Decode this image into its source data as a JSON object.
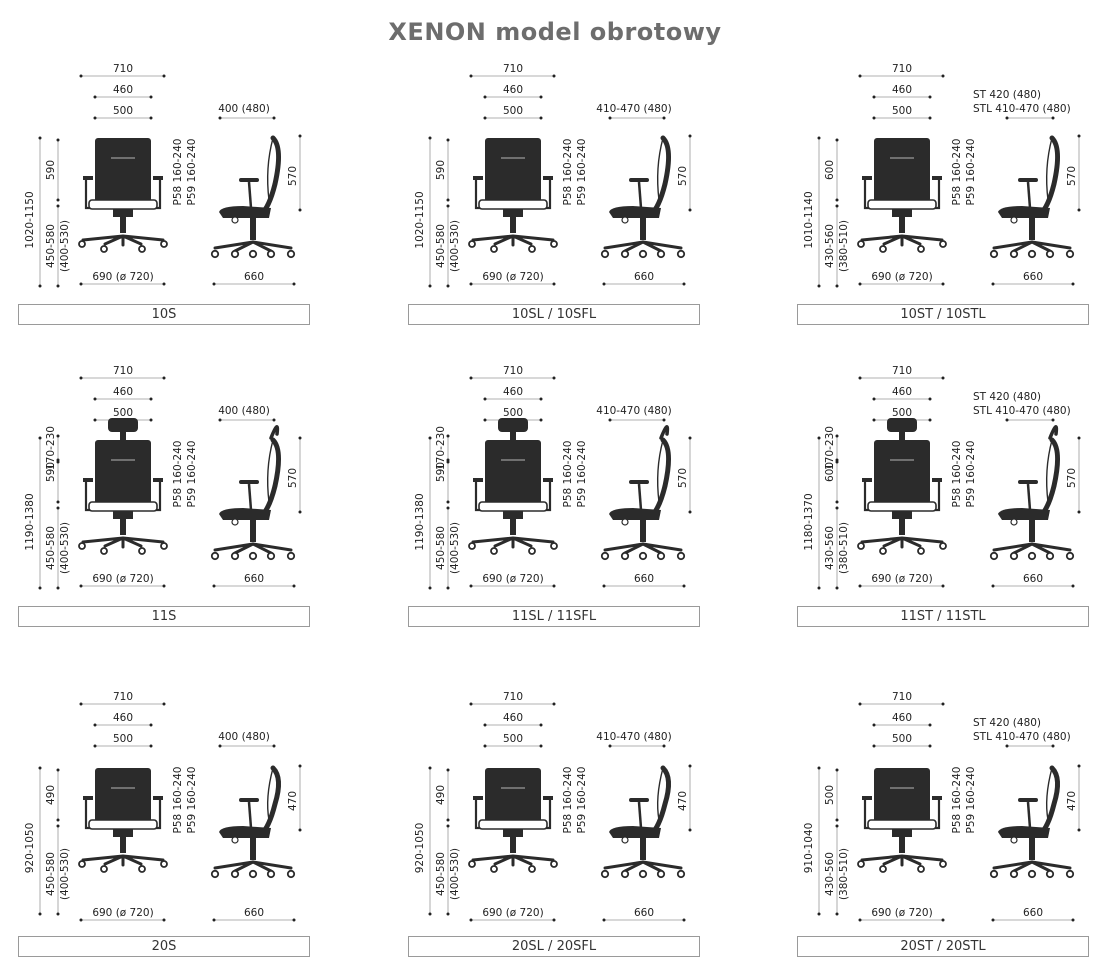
{
  "title": "XENON model obrotowy",
  "colors": {
    "ink": "#222222",
    "chair": "#2b2b2b",
    "title": "#6d6d6d",
    "border": "#9a9a9a"
  },
  "rows": [
    {
      "headrest": false,
      "low": false,
      "models": [
        {
          "label": "10S",
          "variant": "std",
          "w_outer": "710",
          "w_arms": "460",
          "w_seat": "500",
          "depth_top": "400 (480)",
          "depth_top2": "",
          "h_total": "1020-1150",
          "h_back": "590",
          "h_head": "",
          "h_seat": "450-580",
          "h_seat2": "(400-530)",
          "h_side": "570",
          "arm1": "P58 160-240",
          "arm2": "P59 160-240",
          "base": "690 (ø 720)",
          "depth": "660"
        },
        {
          "label": "10SL / 10SFL",
          "variant": "sl",
          "w_outer": "710",
          "w_arms": "460",
          "w_seat": "500",
          "depth_top": "410-470 (480)",
          "depth_top2": "",
          "h_total": "1020-1150",
          "h_back": "590",
          "h_head": "",
          "h_seat": "450-580",
          "h_seat2": "(400-530)",
          "h_side": "570",
          "arm1": "P58 160-240",
          "arm2": "P59 160-240",
          "base": "690 (ø 720)",
          "depth": "660"
        },
        {
          "label": "10ST / 10STL",
          "variant": "st",
          "w_outer": "710",
          "w_arms": "460",
          "w_seat": "500",
          "depth_top": "ST 420 (480)",
          "depth_top2": "STL 410-470 (480)",
          "h_total": "1010-1140",
          "h_back": "600",
          "h_head": "",
          "h_seat": "430-560",
          "h_seat2": "(380-510)",
          "h_side": "570",
          "arm1": "P58 160-240",
          "arm2": "P59 160-240",
          "base": "690 (ø 720)",
          "depth": "660"
        }
      ]
    },
    {
      "headrest": true,
      "low": false,
      "models": [
        {
          "label": "11S",
          "variant": "std",
          "w_outer": "710",
          "w_arms": "460",
          "w_seat": "500",
          "depth_top": "400 (480)",
          "depth_top2": "",
          "h_total": "1190-1380",
          "h_back": "590",
          "h_head": "170-230",
          "h_seat": "450-580",
          "h_seat2": "(400-530)",
          "h_side": "570",
          "arm1": "P58 160-240",
          "arm2": "P59 160-240",
          "base": "690 (ø 720)",
          "depth": "660"
        },
        {
          "label": "11SL / 11SFL",
          "variant": "sl",
          "w_outer": "710",
          "w_arms": "460",
          "w_seat": "500",
          "depth_top": "410-470 (480)",
          "depth_top2": "",
          "h_total": "1190-1380",
          "h_back": "590",
          "h_head": "170-230",
          "h_seat": "450-580",
          "h_seat2": "(400-530)",
          "h_side": "570",
          "arm1": "P58 160-240",
          "arm2": "P59 160-240",
          "base": "690 (ø 720)",
          "depth": "660"
        },
        {
          "label": "11ST / 11STL",
          "variant": "st",
          "w_outer": "710",
          "w_arms": "460",
          "w_seat": "500",
          "depth_top": "ST 420 (480)",
          "depth_top2": "STL 410-470 (480)",
          "h_total": "1180-1370",
          "h_back": "600",
          "h_head": "170-230",
          "h_seat": "430-560",
          "h_seat2": "(380-510)",
          "h_side": "570",
          "arm1": "P58 160-240",
          "arm2": "P59 160-240",
          "base": "690 (ø 720)",
          "depth": "660"
        }
      ]
    },
    {
      "headrest": false,
      "low": true,
      "models": [
        {
          "label": "20S",
          "variant": "std",
          "w_outer": "710",
          "w_arms": "460",
          "w_seat": "500",
          "depth_top": "400 (480)",
          "depth_top2": "",
          "h_total": "920-1050",
          "h_back": "490",
          "h_head": "",
          "h_seat": "450-580",
          "h_seat2": "(400-530)",
          "h_side": "470",
          "arm1": "P58 160-240",
          "arm2": "P59 160-240",
          "base": "690 (ø 720)",
          "depth": "660"
        },
        {
          "label": "20SL / 20SFL",
          "variant": "sl",
          "w_outer": "710",
          "w_arms": "460",
          "w_seat": "500",
          "depth_top": "410-470 (480)",
          "depth_top2": "",
          "h_total": "920-1050",
          "h_back": "490",
          "h_head": "",
          "h_seat": "450-580",
          "h_seat2": "(400-530)",
          "h_side": "470",
          "arm1": "P58 160-240",
          "arm2": "P59 160-240",
          "base": "690 (ø 720)",
          "depth": "660"
        },
        {
          "label": "20ST / 20STL",
          "variant": "st",
          "w_outer": "710",
          "w_arms": "460",
          "w_seat": "500",
          "depth_top": "ST 420 (480)",
          "depth_top2": "STL 410-470 (480)",
          "h_total": "910-1040",
          "h_back": "500",
          "h_head": "",
          "h_seat": "430-560",
          "h_seat2": "(380-510)",
          "h_side": "470",
          "arm1": "P58 160-240",
          "arm2": "P59 160-240",
          "base": "690 (ø 720)",
          "depth": "660"
        }
      ]
    }
  ]
}
